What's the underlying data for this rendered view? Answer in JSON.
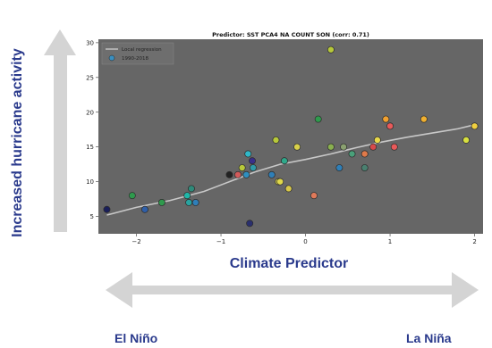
{
  "labels": {
    "y_outer": "Increased hurricane activity",
    "x_outer": "Climate Predictor",
    "left_end": "El Niño",
    "right_end": "La Niña"
  },
  "chart_data": {
    "type": "scatter",
    "title": "Predictor: SST PCA4 NA COUNT SON (corr: 0.71)",
    "xlim": [
      -2.45,
      2.1
    ],
    "ylim": [
      2.5,
      30.5
    ],
    "xticks": [
      -2,
      -1,
      0,
      1,
      2
    ],
    "yticks": [
      5,
      10,
      15,
      20,
      25,
      30
    ],
    "grid": false,
    "legend_position": "top-left",
    "colors": {
      "plot_bg": "#666666",
      "regression": "#c8c8c8",
      "arrow": "#d4d4d4",
      "outer_text": "#2a3a8c",
      "legend_marker": "#3a8fc0"
    },
    "legend": [
      {
        "label": "Local regression",
        "kind": "line"
      },
      {
        "label": "1990-2018",
        "kind": "marker"
      }
    ],
    "regression": {
      "x": [
        -2.35,
        -2.0,
        -1.6,
        -1.2,
        -0.9,
        -0.6,
        -0.3,
        0.0,
        0.3,
        0.6,
        0.9,
        1.2,
        1.5,
        1.8,
        2.0
      ],
      "y": [
        5.2,
        6.3,
        7.3,
        8.6,
        10.0,
        11.4,
        12.5,
        13.2,
        14.0,
        14.9,
        15.7,
        16.4,
        17.0,
        17.6,
        18.2
      ]
    },
    "points": [
      {
        "x": -2.35,
        "y": 6,
        "color": "#1a1f5a"
      },
      {
        "x": -2.05,
        "y": 8,
        "color": "#2f9a4d"
      },
      {
        "x": -1.9,
        "y": 6,
        "color": "#2f5fa8"
      },
      {
        "x": -1.7,
        "y": 7,
        "color": "#2f9a4d"
      },
      {
        "x": -1.4,
        "y": 8,
        "color": "#1fb7a8"
      },
      {
        "x": -1.38,
        "y": 7,
        "color": "#29a3a0"
      },
      {
        "x": -1.35,
        "y": 9,
        "color": "#2f8a7a"
      },
      {
        "x": -1.3,
        "y": 7,
        "color": "#2f7fb8"
      },
      {
        "x": -0.9,
        "y": 11,
        "color": "#222222"
      },
      {
        "x": -0.8,
        "y": 11,
        "color": "#d15a5a"
      },
      {
        "x": -0.75,
        "y": 12,
        "color": "#b7c83a"
      },
      {
        "x": -0.7,
        "y": 11,
        "color": "#2f8fbf"
      },
      {
        "x": -0.68,
        "y": 14,
        "color": "#30b8c8"
      },
      {
        "x": -0.66,
        "y": 4,
        "color": "#2a2f6e"
      },
      {
        "x": -0.63,
        "y": 13,
        "color": "#3a2f8a"
      },
      {
        "x": -0.62,
        "y": 12,
        "color": "#2f9aa8"
      },
      {
        "x": -0.4,
        "y": 11,
        "color": "#2f7fb8"
      },
      {
        "x": -0.35,
        "y": 16,
        "color": "#b7c83a"
      },
      {
        "x": -0.32,
        "y": 10,
        "color": "#d8d04a"
      },
      {
        "x": -0.3,
        "y": 10,
        "color": "#e0d84a"
      },
      {
        "x": -0.25,
        "y": 13,
        "color": "#2fa88a"
      },
      {
        "x": -0.2,
        "y": 9,
        "color": "#d8c84a"
      },
      {
        "x": -0.1,
        "y": 15,
        "color": "#d8d04a"
      },
      {
        "x": 0.1,
        "y": 8,
        "color": "#e07a5a"
      },
      {
        "x": 0.15,
        "y": 19,
        "color": "#2f9a4d"
      },
      {
        "x": 0.3,
        "y": 29,
        "color": "#b7c83a"
      },
      {
        "x": 0.3,
        "y": 15,
        "color": "#8ab050"
      },
      {
        "x": 0.4,
        "y": 12,
        "color": "#2f7fb8"
      },
      {
        "x": 0.45,
        "y": 15,
        "color": "#8aa070"
      },
      {
        "x": 0.55,
        "y": 14,
        "color": "#4aa07a"
      },
      {
        "x": 0.7,
        "y": 12,
        "color": "#4a8070"
      },
      {
        "x": 0.7,
        "y": 14,
        "color": "#e07a4a"
      },
      {
        "x": 0.8,
        "y": 15,
        "color": "#d84a4a"
      },
      {
        "x": 0.85,
        "y": 16,
        "color": "#e8d84a"
      },
      {
        "x": 0.95,
        "y": 19,
        "color": "#f0a030"
      },
      {
        "x": 1.0,
        "y": 18,
        "color": "#e85a5a"
      },
      {
        "x": 1.05,
        "y": 15,
        "color": "#e85a5a"
      },
      {
        "x": 1.4,
        "y": 19,
        "color": "#f0b030"
      },
      {
        "x": 1.9,
        "y": 16,
        "color": "#d8e040"
      },
      {
        "x": 2.0,
        "y": 18,
        "color": "#f0d040"
      }
    ]
  }
}
